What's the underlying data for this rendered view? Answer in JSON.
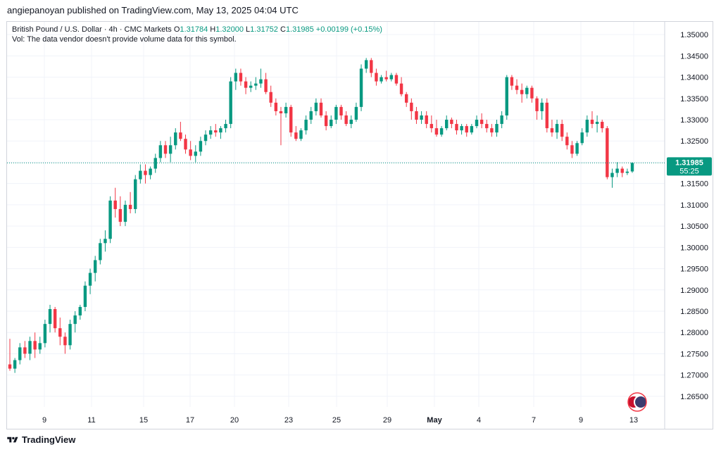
{
  "header": {
    "published": "angiepanoyan published on TradingView.com, May 13, 2025 04:04 UTC"
  },
  "legend": {
    "symbol": "British Pound / U.S. Dollar · 4h · CMC Markets",
    "o_label": "O",
    "o_value": "1.31784",
    "h_label": "H",
    "h_value": "1.32000",
    "l_label": "L",
    "l_value": "1.31752",
    "c_label": "C",
    "c_value": "1.31985",
    "change": "+0.00199 (+0.15%)",
    "vol_note": "Vol: The data vendor doesn't provide volume data for this symbol."
  },
  "price_tag": {
    "price": "1.31985",
    "countdown": "55:25"
  },
  "footer": {
    "brand": "TradingView"
  },
  "colors": {
    "up": "#089981",
    "down": "#f23645",
    "grid": "#f0f3fa",
    "text": "#131722"
  },
  "chart_data": {
    "type": "candlestick",
    "title": "British Pound / U.S. Dollar · 4h · CMC Markets",
    "ylim": [
      1.2625,
      1.353
    ],
    "y_ticks": [
      "1.35000",
      "1.34500",
      "1.34000",
      "1.33500",
      "1.33000",
      "1.32500",
      "1.32000",
      "1.31500",
      "1.31000",
      "1.30500",
      "1.30000",
      "1.29500",
      "1.29000",
      "1.28500",
      "1.28000",
      "1.27500",
      "1.27000",
      "1.26500"
    ],
    "x_ticks": [
      "9",
      "11",
      "15",
      "17",
      "20",
      "23",
      "25",
      "29",
      "May",
      "4",
      "7",
      "9",
      "13"
    ],
    "last_price": 1.31985,
    "grid": true,
    "candles": [
      [
        1.2725,
        1.2785,
        1.271,
        1.2715
      ],
      [
        1.2715,
        1.274,
        1.2705,
        1.2735
      ],
      [
        1.2735,
        1.2775,
        1.2725,
        1.2765
      ],
      [
        1.2765,
        1.278,
        1.274,
        1.275
      ],
      [
        1.275,
        1.279,
        1.2735,
        1.278
      ],
      [
        1.278,
        1.28,
        1.274,
        1.276
      ],
      [
        1.276,
        1.279,
        1.275,
        1.2775
      ],
      [
        1.2775,
        1.283,
        1.2765,
        1.282
      ],
      [
        1.282,
        1.2865,
        1.28,
        1.2855
      ],
      [
        1.2855,
        1.286,
        1.28,
        1.281
      ],
      [
        1.281,
        1.2835,
        1.277,
        1.279
      ],
      [
        1.279,
        1.28,
        1.275,
        1.277
      ],
      [
        1.277,
        1.283,
        1.276,
        1.282
      ],
      [
        1.282,
        1.285,
        1.28,
        1.284
      ],
      [
        1.284,
        1.2865,
        1.283,
        1.286
      ],
      [
        1.286,
        1.292,
        1.285,
        1.291
      ],
      [
        1.291,
        1.295,
        1.289,
        1.294
      ],
      [
        1.294,
        1.298,
        1.292,
        1.297
      ],
      [
        1.297,
        1.302,
        1.296,
        1.301
      ],
      [
        1.301,
        1.304,
        1.299,
        1.302
      ],
      [
        1.302,
        1.312,
        1.301,
        1.311
      ],
      [
        1.311,
        1.314,
        1.307,
        1.309
      ],
      [
        1.309,
        1.312,
        1.305,
        1.306
      ],
      [
        1.306,
        1.311,
        1.305,
        1.31
      ],
      [
        1.31,
        1.313,
        1.308,
        1.309
      ],
      [
        1.309,
        1.317,
        1.308,
        1.316
      ],
      [
        1.316,
        1.3195,
        1.315,
        1.318
      ],
      [
        1.318,
        1.3195,
        1.315,
        1.317
      ],
      [
        1.317,
        1.319,
        1.316,
        1.3185
      ],
      [
        1.3185,
        1.322,
        1.3175,
        1.321
      ],
      [
        1.321,
        1.325,
        1.32,
        1.324
      ],
      [
        1.324,
        1.325,
        1.321,
        1.322
      ],
      [
        1.322,
        1.326,
        1.32,
        1.324
      ],
      [
        1.324,
        1.328,
        1.323,
        1.327
      ],
      [
        1.327,
        1.3295,
        1.325,
        1.3255
      ],
      [
        1.3255,
        1.3265,
        1.322,
        1.323
      ],
      [
        1.323,
        1.325,
        1.3205,
        1.3215
      ],
      [
        1.3215,
        1.324,
        1.32,
        1.3225
      ],
      [
        1.3225,
        1.326,
        1.3215,
        1.325
      ],
      [
        1.325,
        1.3275,
        1.324,
        1.3265
      ],
      [
        1.3265,
        1.3285,
        1.3255,
        1.3275
      ],
      [
        1.3275,
        1.329,
        1.326,
        1.327
      ],
      [
        1.327,
        1.3285,
        1.3255,
        1.328
      ],
      [
        1.328,
        1.33,
        1.327,
        1.329
      ],
      [
        1.329,
        1.34,
        1.328,
        1.339
      ],
      [
        1.339,
        1.342,
        1.337,
        1.341
      ],
      [
        1.341,
        1.342,
        1.338,
        1.339
      ],
      [
        1.339,
        1.34,
        1.336,
        1.3375
      ],
      [
        1.3375,
        1.339,
        1.3365,
        1.338
      ],
      [
        1.338,
        1.34,
        1.337,
        1.3385
      ],
      [
        1.3385,
        1.342,
        1.3375,
        1.3395
      ],
      [
        1.3395,
        1.341,
        1.336,
        1.3365
      ],
      [
        1.3365,
        1.338,
        1.333,
        1.334
      ],
      [
        1.334,
        1.335,
        1.331,
        1.332
      ],
      [
        1.332,
        1.333,
        1.324,
        1.3315
      ],
      [
        1.3315,
        1.334,
        1.3305,
        1.333
      ],
      [
        1.333,
        1.3335,
        1.326,
        1.327
      ],
      [
        1.327,
        1.3285,
        1.325,
        1.3255
      ],
      [
        1.3255,
        1.328,
        1.325,
        1.3275
      ],
      [
        1.3275,
        1.331,
        1.3265,
        1.33
      ],
      [
        1.33,
        1.333,
        1.329,
        1.332
      ],
      [
        1.332,
        1.335,
        1.331,
        1.334
      ],
      [
        1.334,
        1.335,
        1.3305,
        1.331
      ],
      [
        1.331,
        1.332,
        1.3275,
        1.3285
      ],
      [
        1.3285,
        1.331,
        1.328,
        1.33
      ],
      [
        1.33,
        1.3335,
        1.329,
        1.333
      ],
      [
        1.333,
        1.3335,
        1.33,
        1.331
      ],
      [
        1.331,
        1.332,
        1.3285,
        1.329
      ],
      [
        1.329,
        1.331,
        1.328,
        1.33
      ],
      [
        1.33,
        1.334,
        1.3295,
        1.333
      ],
      [
        1.333,
        1.343,
        1.332,
        1.342
      ],
      [
        1.342,
        1.3445,
        1.341,
        1.344
      ],
      [
        1.344,
        1.3445,
        1.34,
        1.341
      ],
      [
        1.341,
        1.342,
        1.338,
        1.339
      ],
      [
        1.339,
        1.3405,
        1.3385,
        1.34
      ],
      [
        1.34,
        1.3415,
        1.339,
        1.3395
      ],
      [
        1.3395,
        1.341,
        1.339,
        1.3405
      ],
      [
        1.3405,
        1.341,
        1.338,
        1.3385
      ],
      [
        1.3385,
        1.34,
        1.3355,
        1.336
      ],
      [
        1.336,
        1.3365,
        1.333,
        1.334
      ],
      [
        1.334,
        1.335,
        1.33,
        1.332
      ],
      [
        1.332,
        1.333,
        1.329,
        1.33
      ],
      [
        1.33,
        1.332,
        1.329,
        1.331
      ],
      [
        1.331,
        1.332,
        1.328,
        1.329
      ],
      [
        1.329,
        1.331,
        1.327,
        1.328
      ],
      [
        1.328,
        1.33,
        1.326,
        1.3265
      ],
      [
        1.3265,
        1.3285,
        1.326,
        1.328
      ],
      [
        1.328,
        1.331,
        1.3275,
        1.33
      ],
      [
        1.33,
        1.3305,
        1.328,
        1.329
      ],
      [
        1.329,
        1.33,
        1.3265,
        1.3275
      ],
      [
        1.3275,
        1.329,
        1.3265,
        1.3285
      ],
      [
        1.3285,
        1.329,
        1.326,
        1.327
      ],
      [
        1.327,
        1.329,
        1.3265,
        1.3285
      ],
      [
        1.3285,
        1.331,
        1.328,
        1.33
      ],
      [
        1.33,
        1.3315,
        1.328,
        1.329
      ],
      [
        1.329,
        1.33,
        1.327,
        1.328
      ],
      [
        1.328,
        1.329,
        1.326,
        1.327
      ],
      [
        1.327,
        1.33,
        1.326,
        1.329
      ],
      [
        1.329,
        1.332,
        1.328,
        1.331
      ],
      [
        1.331,
        1.3405,
        1.33,
        1.34
      ],
      [
        1.34,
        1.3405,
        1.337,
        1.338
      ],
      [
        1.338,
        1.3395,
        1.336,
        1.337
      ],
      [
        1.337,
        1.3385,
        1.334,
        1.336
      ],
      [
        1.336,
        1.338,
        1.335,
        1.3375
      ],
      [
        1.3375,
        1.338,
        1.334,
        1.335
      ],
      [
        1.335,
        1.3355,
        1.33,
        1.332
      ],
      [
        1.332,
        1.335,
        1.33,
        1.334
      ],
      [
        1.334,
        1.335,
        1.327,
        1.328
      ],
      [
        1.328,
        1.33,
        1.326,
        1.327
      ],
      [
        1.327,
        1.33,
        1.3255,
        1.329
      ],
      [
        1.329,
        1.33,
        1.325,
        1.326
      ],
      [
        1.326,
        1.327,
        1.323,
        1.324
      ],
      [
        1.324,
        1.325,
        1.321,
        1.322
      ],
      [
        1.322,
        1.325,
        1.3215,
        1.3245
      ],
      [
        1.3245,
        1.328,
        1.324,
        1.327
      ],
      [
        1.327,
        1.331,
        1.326,
        1.33
      ],
      [
        1.33,
        1.332,
        1.328,
        1.329
      ],
      [
        1.329,
        1.331,
        1.327,
        1.3295
      ],
      [
        1.3295,
        1.33,
        1.327,
        1.328
      ],
      [
        1.328,
        1.3285,
        1.316,
        1.3165
      ],
      [
        1.3165,
        1.3185,
        1.314,
        1.3175
      ],
      [
        1.3175,
        1.32,
        1.3165,
        1.3185
      ],
      [
        1.3185,
        1.319,
        1.3165,
        1.3175
      ],
      [
        1.3175,
        1.3185,
        1.317,
        1.3178
      ],
      [
        1.31784,
        1.32,
        1.31752,
        1.31985
      ]
    ]
  }
}
